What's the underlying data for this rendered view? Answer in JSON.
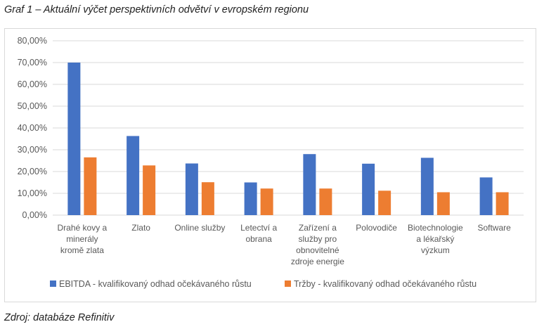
{
  "caption": "Graf 1 – Aktuální výčet perspektivních odvětví v evropském regionu",
  "source": "Zdroj: databáze Refinitiv",
  "colors": {
    "ebitda": "#4472C4",
    "trzby": "#ED7D31",
    "grid": "#d9d9d9"
  },
  "chart_data": {
    "type": "bar",
    "title": "",
    "xlabel": "",
    "ylabel": "",
    "ylim": [
      0,
      80
    ],
    "yticks": [
      "0,00%",
      "10,00%",
      "20,00%",
      "30,00%",
      "40,00%",
      "50,00%",
      "60,00%",
      "70,00%",
      "80,00%"
    ],
    "categories": [
      [
        "Drahé kovy a",
        "minerály",
        "kromě zlata"
      ],
      [
        "Zlato"
      ],
      [
        "Online služby"
      ],
      [
        "Letectví a",
        "obrana"
      ],
      [
        "Zařízení a",
        "služby pro",
        "obnovitelné",
        "zdroje energie"
      ],
      [
        "Polovodiče"
      ],
      [
        "Biotechnologie",
        "a lékařský",
        "výzkum"
      ],
      [
        "Software"
      ]
    ],
    "series": [
      {
        "name": "EBITDA - kvalifikovaný odhad očekávaného růstu",
        "values": [
          70.0,
          36.3,
          23.7,
          15.0,
          28.0,
          23.6,
          26.3,
          17.3
        ]
      },
      {
        "name": "Tržby - kvalifikovaný odhad očekávaného růstu",
        "values": [
          26.5,
          22.8,
          15.1,
          12.2,
          12.2,
          11.2,
          10.5,
          10.5
        ]
      }
    ],
    "grid": true,
    "legend": "bottom"
  }
}
